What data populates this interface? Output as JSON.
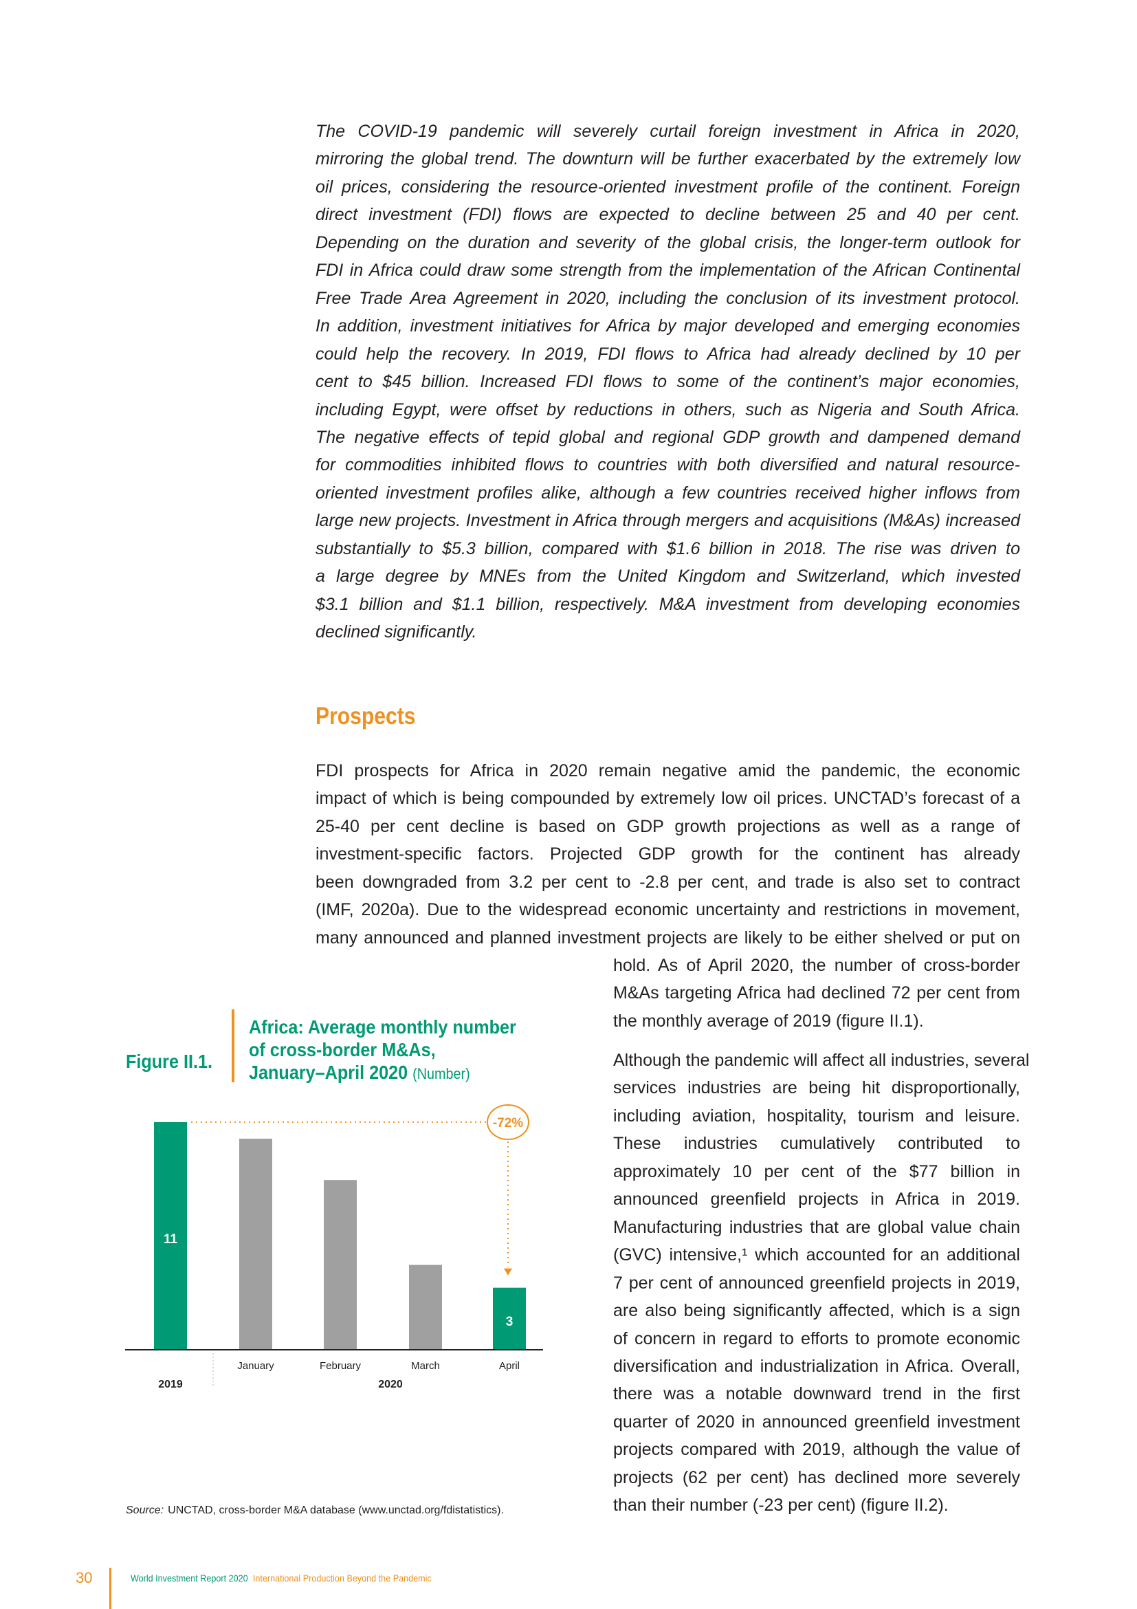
{
  "intro": {
    "lines": [
      "The COVID-19 pandemic will severely curtail foreign investment in Africa in 2020,",
      "mirroring the global trend. The downturn will be further exacerbated by the extremely low",
      "oil prices, considering the resource-oriented investment profile of the continent. Foreign",
      "direct investment (FDI) flows are expected to decline between 25 and 40 per cent.",
      "Depending on the duration and severity of the global crisis, the longer-term outlook for",
      "FDI in Africa could draw some strength from the implementation of the African Continental",
      "Free Trade Area Agreement in 2020, including the conclusion of its investment protocol.",
      "In addition, investment initiatives for Africa by major developed and emerging economies",
      "could help the recovery. In 2019, FDI flows to Africa had already declined by 10 per",
      "cent to $45 billion. Increased FDI flows to some of the continent’s major economies,",
      "including Egypt, were offset by reductions in others, such as Nigeria and South Africa.",
      "The negative effects of tepid global and regional GDP growth and dampened demand",
      "for commodities inhibited flows to countries with both diversified and natural resource-",
      "oriented investment profiles alike, although a few countries received higher inflows from",
      "large new projects. Investment in Africa through mergers and acquisitions (M&As) increased",
      "substantially to $5.3 billion, compared with $1.6 billion in 2018. The rise was driven to",
      "a large degree by MNEs from the United Kingdom and Switzerland, which invested",
      "$3.1 billion and $1.1 billion, respectively. M&A investment from developing economies",
      "declined significantly."
    ]
  },
  "prospects": {
    "heading": "Prospects",
    "para1_wide": [
      "FDI prospects for Africa in 2020 remain negative amid the pandemic, the economic",
      "impact of which is being compounded by extremely low oil prices. UNCTAD’s forecast of a",
      "25-40 per cent decline is based on GDP growth projections as well as a range of",
      "investment-specific factors. Projected GDP growth for the continent has already",
      "been downgraded from 3.2 per cent to -2.8 per cent, and trade is also set to contract",
      "(IMF, 2020a). Due to the widespread economic uncertainty and restrictions in movement,",
      "many announced and planned investment projects are likely to be either shelved or put on"
    ],
    "para1_narrow": [
      "hold. As of April 2020, the number of cross-border",
      "M&As targeting Africa had declined 72 per cent from",
      "the monthly average of 2019 (figure II.1)."
    ],
    "para2": [
      "Although the pandemic will affect all industries, several",
      "services industries are being hit disproportionally,",
      "including aviation, hospitality, tourism and leisure.",
      "These industries cumulatively contributed to",
      "approximately 10 per cent of the $77 billion in",
      "announced greenfield projects in Africa in 2019.",
      "Manufacturing industries that are global value chain",
      "(GVC) intensive,¹ which accounted for an additional",
      "7 per cent of announced greenfield projects in 2019,",
      "are also being significantly affected, which is a sign",
      "of concern in regard to efforts to promote economic",
      "diversification and industrialization in Africa. Overall,",
      "there was a notable downward trend in the first",
      "quarter of 2020 in announced greenfield investment",
      "projects compared with 2019, although the value of",
      "projects (62 per cent) has declined more severely",
      "than their number (-23 per cent) (figure II.2)."
    ]
  },
  "figure": {
    "label": "Figure II.1.",
    "title_lines": [
      "Africa: Average monthly number",
      "of cross-border M&As,",
      "January–April 2020"
    ],
    "unit": "(Number)",
    "source_label": "Source:",
    "source_text": "UNCTAD, cross-border M&A database (www.unctad.org/fdistatistics)."
  },
  "chart_data": {
    "type": "bar",
    "categories": [
      "",
      "January",
      "February",
      "March",
      "April"
    ],
    "groups": [
      "2019",
      "2020"
    ],
    "values": [
      11,
      10.2,
      8.2,
      4.1,
      3
    ],
    "data_labels": [
      "11",
      "",
      "",
      "",
      "3"
    ],
    "bar_colors": [
      "#009a74",
      "#a0a0a0",
      "#a0a0a0",
      "#a0a0a0",
      "#009a74"
    ],
    "annotation": "-72%",
    "annotation_color": "#f0901e",
    "ylim": [
      0,
      11
    ],
    "grid": false
  },
  "footer": {
    "page_number": "30",
    "report": "World Investment Report 2020",
    "subtitle": "International Production Beyond the Pandemic"
  },
  "colors": {
    "accent_green": "#009a74",
    "accent_orange": "#f0901e",
    "bar_gray": "#a0a0a0"
  }
}
